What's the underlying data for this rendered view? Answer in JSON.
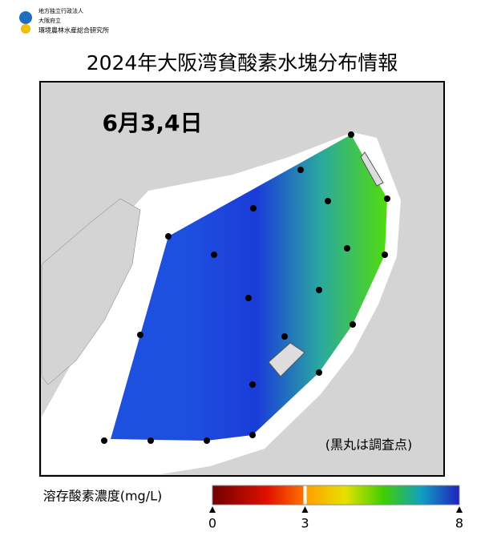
{
  "organization": {
    "lines": [
      "地方独立行政法人",
      "大阪府立",
      "環境農林水産総合研究所"
    ]
  },
  "title": "2024年大阪湾貧酸素水塊分布情報",
  "date_label": "6月3,4日",
  "note": "(黒丸は調査点)",
  "colorbar": {
    "label": "溶存酸素濃度(mg/L)",
    "range": [
      0,
      8
    ],
    "ticks": [
      0,
      3,
      8
    ]
  }
}
